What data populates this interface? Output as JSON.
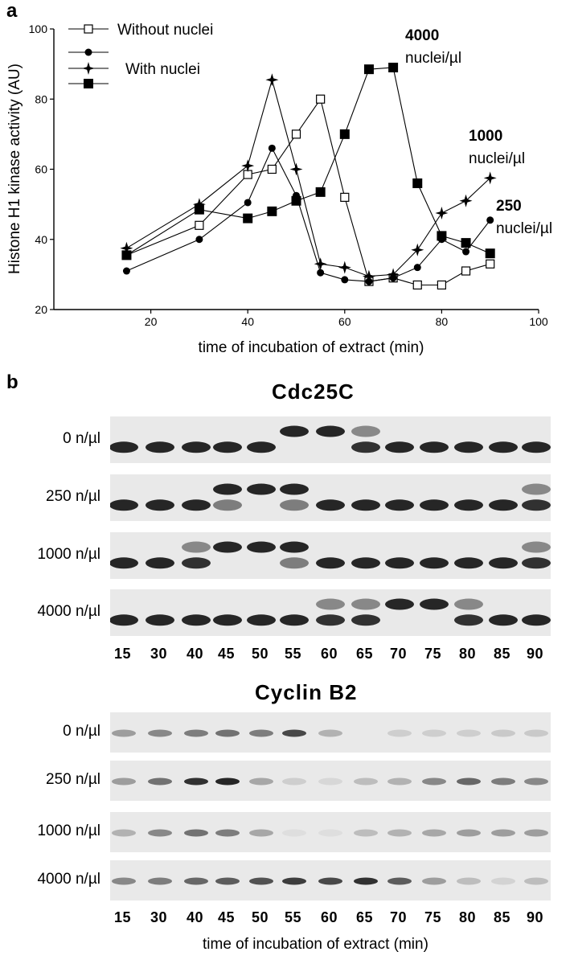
{
  "panel_a": {
    "letter": "a"
  },
  "panel_b": {
    "letter": "b"
  },
  "chart_data": {
    "type": "line",
    "xlabel": "time of incubation of extract (min)",
    "ylabel": "Histone H1 kinase activity (AU)",
    "xlim": [
      0,
      100
    ],
    "ylim": [
      20,
      100
    ],
    "xticks": [
      20,
      40,
      60,
      80,
      100
    ],
    "yticks": [
      20,
      40,
      60,
      80,
      100
    ],
    "legend": {
      "placement": "top-left",
      "entries": [
        "Without nuclei",
        "With nuclei"
      ]
    },
    "annotations": [
      {
        "lines": [
          "4000",
          "nuclei/µl"
        ]
      },
      {
        "lines": [
          "1000",
          "nuclei/µl"
        ]
      },
      {
        "lines": [
          "250",
          "nuclei/µl"
        ]
      }
    ],
    "series": [
      {
        "name": "Without nuclei",
        "marker": "open-square",
        "x": [
          15,
          30,
          40,
          45,
          50,
          55,
          60,
          65,
          70,
          75,
          80,
          85,
          90
        ],
        "y": [
          35.5,
          44,
          58.5,
          60,
          70,
          80,
          52,
          28,
          29,
          27,
          27,
          31,
          33
        ]
      },
      {
        "marker": "circle",
        "x": [
          15,
          30,
          40,
          45,
          50,
          55,
          60,
          65,
          70,
          75,
          80,
          85,
          90
        ],
        "y": [
          31,
          40,
          50.5,
          66,
          52.5,
          30.5,
          28.5,
          28,
          29,
          32,
          40,
          36.5,
          45.5
        ]
      },
      {
        "marker": "star",
        "x": [
          15,
          30,
          40,
          45,
          50,
          55,
          60,
          65,
          70,
          75,
          80,
          85,
          90
        ],
        "y": [
          37.5,
          50,
          61,
          85.5,
          60,
          33,
          32,
          29.5,
          30,
          37,
          47.5,
          51,
          57.5
        ]
      },
      {
        "marker": "filled-square",
        "x": [
          15,
          30,
          40,
          45,
          50,
          55,
          60,
          65,
          70,
          75,
          80,
          85,
          90
        ],
        "y": [
          35.5,
          48.5,
          46,
          48,
          51,
          53.5,
          70,
          88.5,
          89,
          56,
          41,
          39,
          36
        ]
      }
    ]
  },
  "blots": [
    {
      "title": "Cdc25C",
      "rows": [
        {
          "label": "0 n/µl",
          "bands": [
            "L",
            "L",
            "L",
            "L",
            "L",
            "H",
            "H",
            "LH",
            "L",
            "L",
            "L",
            "L",
            "L"
          ]
        },
        {
          "label": "250 n/µl",
          "bands": [
            "L",
            "L",
            "L",
            "HL",
            "H",
            "HL",
            "L",
            "L",
            "L",
            "L",
            "L",
            "L",
            "LH"
          ]
        },
        {
          "label": "1000 n/µl",
          "bands": [
            "L",
            "L",
            "LH",
            "H",
            "H",
            "HL",
            "L",
            "L",
            "L",
            "L",
            "L",
            "L",
            "LH"
          ]
        },
        {
          "label": "4000 n/µl",
          "bands": [
            "L",
            "L",
            "L",
            "L",
            "L",
            "L",
            "LH",
            "LH",
            "H",
            "H",
            "LH",
            "L",
            "L"
          ]
        }
      ]
    },
    {
      "title": "Cyclin B2",
      "rows": [
        {
          "label": "0 n/µl",
          "intensity": [
            0.35,
            0.45,
            0.5,
            0.55,
            0.5,
            0.75,
            0.25,
            0,
            0.12,
            0.12,
            0.12,
            0.15,
            0.15
          ]
        },
        {
          "label": "250 n/µl",
          "intensity": [
            0.35,
            0.55,
            0.85,
            0.9,
            0.3,
            0.12,
            0.08,
            0.2,
            0.25,
            0.45,
            0.6,
            0.5,
            0.45
          ]
        },
        {
          "label": "1000 n/µl",
          "intensity": [
            0.25,
            0.45,
            0.55,
            0.5,
            0.3,
            0.05,
            0.05,
            0.2,
            0.25,
            0.3,
            0.35,
            0.35,
            0.35
          ]
        },
        {
          "label": "4000 n/µl",
          "intensity": [
            0.45,
            0.5,
            0.6,
            0.65,
            0.7,
            0.8,
            0.75,
            0.85,
            0.65,
            0.35,
            0.2,
            0.1,
            0.2
          ]
        }
      ]
    }
  ],
  "lanes": [
    "15",
    "30",
    "40",
    "45",
    "50",
    "55",
    "60",
    "65",
    "70",
    "75",
    "80",
    "85",
    "90"
  ],
  "bottom_xlabel": "time of incubation of extract (min)"
}
